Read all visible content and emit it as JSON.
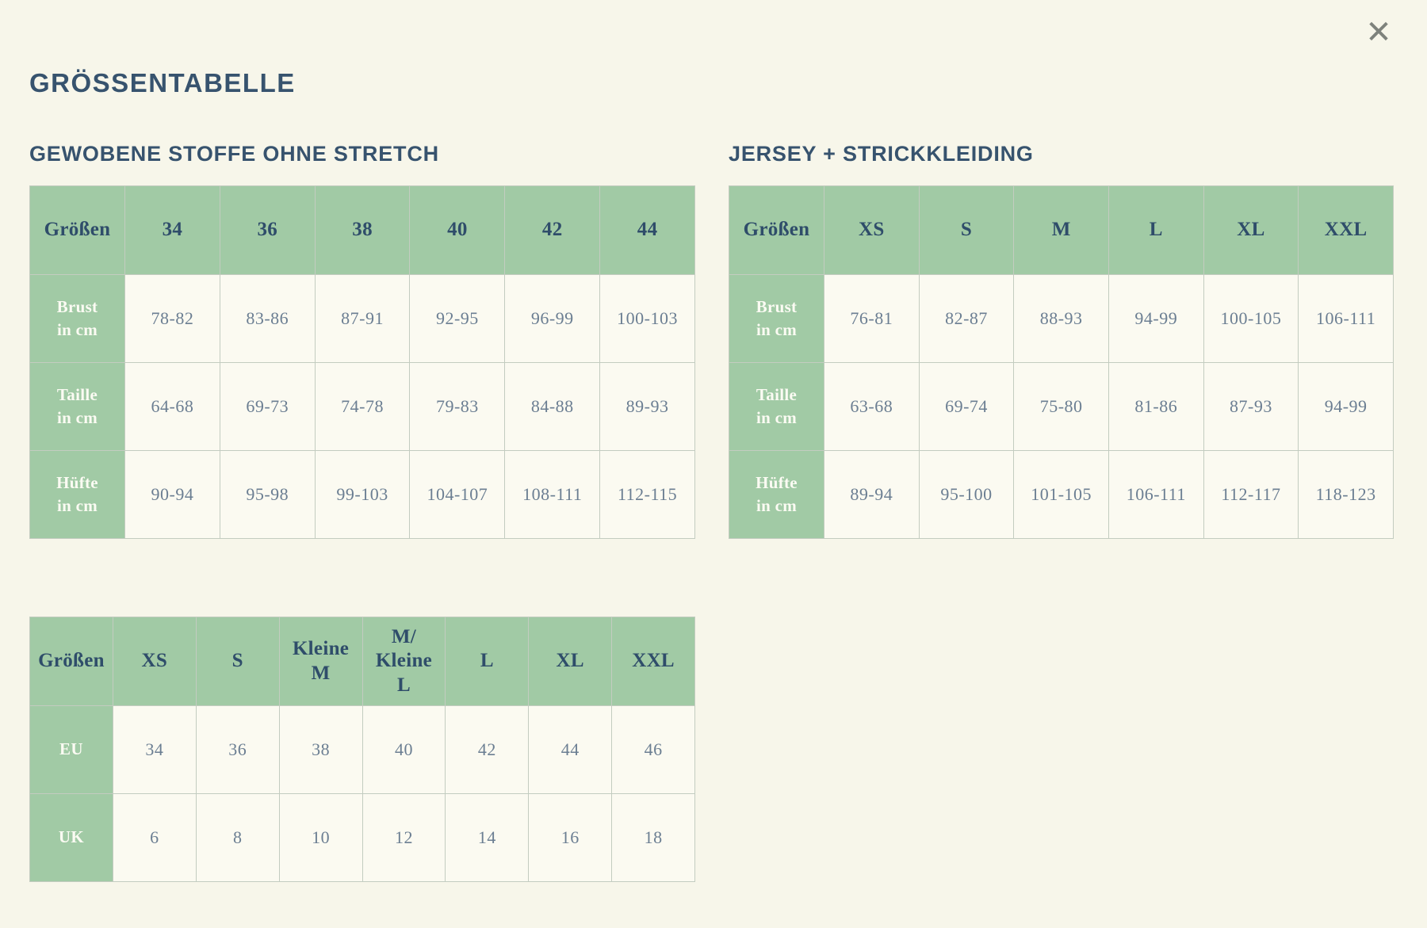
{
  "modal": {
    "title": "GRÖSSENTABELLE",
    "close_icon": "✕"
  },
  "colors": {
    "header_green": "#a1caa5",
    "title_navy": "#37536e",
    "header_text_navy": "#2f4d6a",
    "cell_text_blue_gray": "#6b7e92",
    "row_label_white": "#fbfbf3",
    "background_cream": "#f7f6ea",
    "cell_background": "#fbfaf1",
    "border_gray": "#c3ccc0",
    "close_icon_gray": "#7e827c"
  },
  "tables": [
    {
      "name": "woven",
      "title": "GEWOBENE STOFFE OHNE STRETCH",
      "corner_label": "Größen",
      "columns": [
        "34",
        "36",
        "38",
        "40",
        "42",
        "44"
      ],
      "rows": [
        {
          "label": "Brust\nin cm",
          "values": [
            "78-82",
            "83-86",
            "87-91",
            "92-95",
            "96-99",
            "100-103"
          ]
        },
        {
          "label": "Taille\nin cm",
          "values": [
            "64-68",
            "69-73",
            "74-78",
            "79-83",
            "84-88",
            "89-93"
          ]
        },
        {
          "label": "Hüfte\nin cm",
          "values": [
            "90-94",
            "95-98",
            "99-103",
            "104-107",
            "108-111",
            "112-115"
          ]
        }
      ]
    },
    {
      "name": "jersey",
      "title": "JERSEY + STRICKKLEIDING",
      "corner_label": "Größen",
      "columns": [
        "XS",
        "S",
        "M",
        "L",
        "XL",
        "XXL"
      ],
      "rows": [
        {
          "label": "Brust\nin cm",
          "values": [
            "76-81",
            "82-87",
            "88-93",
            "94-99",
            "100-105",
            "106-111"
          ]
        },
        {
          "label": "Taille\nin cm",
          "values": [
            "63-68",
            "69-74",
            "75-80",
            "81-86",
            "87-93",
            "94-99"
          ]
        },
        {
          "label": "Hüfte\nin cm",
          "values": [
            "89-94",
            "95-100",
            "101-105",
            "106-111",
            "112-117",
            "118-123"
          ]
        }
      ]
    },
    {
      "name": "conversion",
      "corner_label": "Größen",
      "columns": [
        "XS",
        "S",
        "Kleine\nM",
        "M/\nKleine\nL",
        "L",
        "XL",
        "XXL"
      ],
      "rows": [
        {
          "label": "EU",
          "values": [
            "34",
            "36",
            "38",
            "40",
            "42",
            "44",
            "46"
          ]
        },
        {
          "label": "UK",
          "values": [
            "6",
            "8",
            "10",
            "12",
            "14",
            "16",
            "18"
          ]
        }
      ]
    }
  ]
}
